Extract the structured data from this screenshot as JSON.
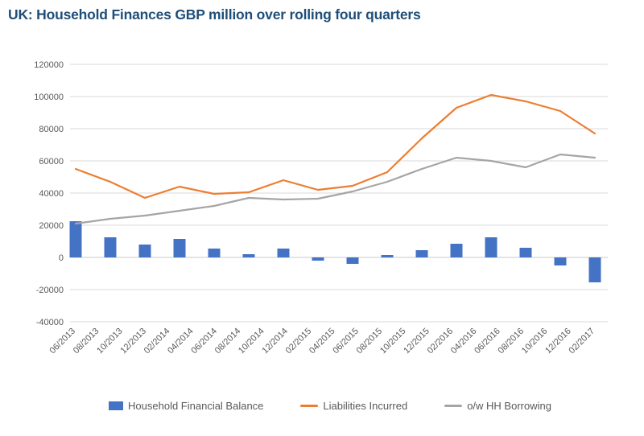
{
  "chart_data": {
    "type": "combo-bar-line",
    "title": "UK: Household Finances GBP million over rolling four quarters",
    "title_color": "#1F4E79",
    "x_tick_labels": [
      "06/2013",
      "08/2013",
      "10/2013",
      "12/2013",
      "02/2014",
      "04/2014",
      "06/2014",
      "08/2014",
      "10/2014",
      "12/2014",
      "02/2015",
      "04/2015",
      "06/2015",
      "08/2015",
      "10/2015",
      "12/2015",
      "02/2016",
      "04/2016",
      "06/2016",
      "08/2016",
      "10/2016",
      "12/2016",
      "02/2017"
    ],
    "series": [
      {
        "name": "Household Financial Balance",
        "type": "bar",
        "color": "#4472C4",
        "values": [
          22500,
          12500,
          8000,
          11500,
          5500,
          2000,
          5500,
          -2000,
          -4000,
          1500,
          4500,
          8500,
          12500,
          6000,
          -5000,
          -15500
        ]
      },
      {
        "name": "Liabilities Incurred",
        "type": "line",
        "color": "#ED7D31",
        "values": [
          55000,
          47000,
          37000,
          44000,
          39500,
          40500,
          48000,
          42000,
          44500,
          53000,
          74000,
          93000,
          101000,
          97000,
          91000,
          77000
        ]
      },
      {
        "name": "o/w HH Borrowing",
        "type": "line",
        "color": "#A5A5A5",
        "values": [
          21000,
          24000,
          26000,
          29000,
          32000,
          37000,
          36000,
          36500,
          41000,
          47000,
          55000,
          62000,
          60000,
          56000,
          64000,
          62000
        ]
      }
    ],
    "series_x_layout": "16 points evenly spanning the category axis from first to last tick",
    "ylim": [
      -40000,
      120000
    ],
    "y_tick_values": [
      120000,
      100000,
      80000,
      60000,
      40000,
      20000,
      0,
      -20000,
      -40000
    ],
    "grid": "horizontal",
    "gridline_color": "#D9D9D9",
    "axis_text_color": "#595959",
    "legend_position": "bottom",
    "xlabel": "",
    "ylabel": ""
  }
}
